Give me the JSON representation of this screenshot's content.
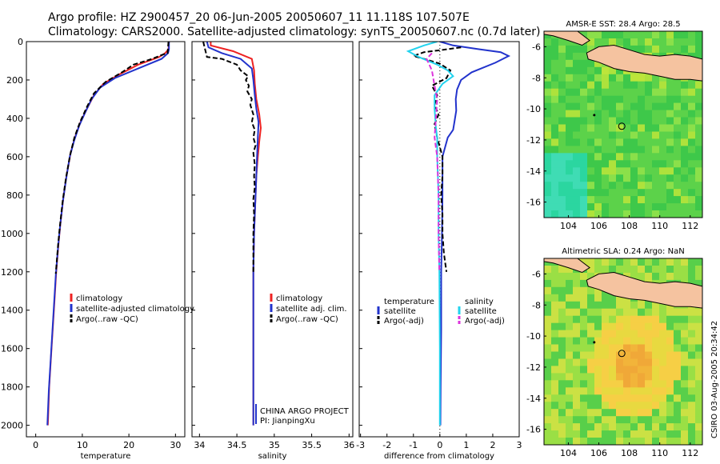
{
  "title": {
    "line1": "Argo profile: HZ 2900457_20 06-Jun-2005 20050607_11 11.118S 107.507E",
    "line2": "Climatology: CARS2000. Satellite-adjusted climatology: synTS_20050607.nc (0.7d later)"
  },
  "colors": {
    "climatology": "#ee2222",
    "satellite": "#2233cc",
    "argo": "#000000",
    "salinity_satellite": "#22d3ee",
    "salinity_argo": "#dd33dd",
    "land": "#f5c3a0"
  },
  "chart_data": [
    {
      "type": "line",
      "id": "temperature",
      "xlabel": "temperature",
      "ylabel": "",
      "xlim": [
        -2,
        32
      ],
      "ylim": [
        2060,
        0
      ],
      "xticks": [
        0,
        10,
        20,
        30
      ],
      "yticks": [
        0,
        200,
        400,
        600,
        800,
        1000,
        1200,
        1400,
        1600,
        1800,
        2000
      ],
      "legend": [
        "climatology",
        "satellite-adjusted climatology",
        "Argo(..raw -QC)"
      ],
      "series": [
        {
          "name": "climatology",
          "color_key": "climatology",
          "points": [
            [
              28.6,
              0
            ],
            [
              28.5,
              40
            ],
            [
              27.8,
              60
            ],
            [
              26.5,
              80
            ],
            [
              22,
              120
            ],
            [
              18,
              170
            ],
            [
              14.5,
              220
            ],
            [
              12.5,
              280
            ],
            [
              11,
              350
            ],
            [
              9.6,
              420
            ],
            [
              8.4,
              500
            ],
            [
              7.5,
              580
            ],
            [
              6.6,
              700
            ],
            [
              5.9,
              820
            ],
            [
              5.3,
              950
            ],
            [
              4.9,
              1050
            ],
            [
              4.4,
              1200
            ],
            [
              3.9,
              1400
            ],
            [
              3.4,
              1600
            ],
            [
              2.9,
              1800
            ],
            [
              2.6,
              2000
            ]
          ]
        },
        {
          "name": "satellite-adjusted climatology",
          "color_key": "satellite",
          "points": [
            [
              28.6,
              0
            ],
            [
              28.6,
              40
            ],
            [
              28.4,
              60
            ],
            [
              27,
              90
            ],
            [
              22,
              140
            ],
            [
              17,
              190
            ],
            [
              13.8,
              240
            ],
            [
              12,
              300
            ],
            [
              10.6,
              370
            ],
            [
              9.3,
              440
            ],
            [
              8.2,
              520
            ],
            [
              7.3,
              600
            ],
            [
              6.5,
              720
            ],
            [
              5.8,
              840
            ],
            [
              5.2,
              970
            ],
            [
              4.8,
              1070
            ],
            [
              4.3,
              1220
            ],
            [
              3.8,
              1420
            ],
            [
              3.3,
              1620
            ],
            [
              2.8,
              1820
            ],
            [
              2.5,
              2000
            ]
          ]
        },
        {
          "name": "Argo(..raw -QC)",
          "color_key": "argo",
          "points": [
            [
              28.5,
              0
            ],
            [
              28.3,
              60
            ],
            [
              27,
              70
            ],
            [
              25,
              90
            ],
            [
              21,
              120
            ],
            [
              18.5,
              160
            ],
            [
              15,
              210
            ],
            [
              12.5,
              270
            ],
            [
              11,
              340
            ],
            [
              9.5,
              420
            ],
            [
              8.3,
              500
            ],
            [
              7.4,
              590
            ],
            [
              6.5,
              710
            ],
            [
              5.8,
              830
            ],
            [
              5.2,
              960
            ],
            [
              4.8,
              1060
            ],
            [
              4.3,
              1210
            ]
          ]
        }
      ]
    },
    {
      "type": "line",
      "id": "salinity",
      "xlabel": "salinity",
      "xlim": [
        33.9,
        36.05
      ],
      "ylim": [
        2060,
        0
      ],
      "xticks": [
        34,
        34.5,
        35,
        35.5,
        36
      ],
      "legend": [
        "climatology",
        "satellite adj. clim.",
        "Argo(..raw -QC)"
      ],
      "annotation": [
        "CHINA ARGO PROJECT",
        "PI: JianpingXu"
      ],
      "series": [
        {
          "name": "climatology",
          "color_key": "climatology",
          "points": [
            [
              34.15,
              0
            ],
            [
              34.15,
              20
            ],
            [
              34.45,
              50
            ],
            [
              34.7,
              90
            ],
            [
              34.73,
              150
            ],
            [
              34.74,
              220
            ],
            [
              34.76,
              300
            ],
            [
              34.8,
              380
            ],
            [
              34.82,
              450
            ],
            [
              34.8,
              520
            ],
            [
              34.78,
              600
            ],
            [
              34.76,
              700
            ],
            [
              34.75,
              800
            ],
            [
              34.74,
              900
            ],
            [
              34.73,
              1000
            ],
            [
              34.72,
              1200
            ],
            [
              34.72,
              1400
            ],
            [
              34.72,
              1600
            ],
            [
              34.72,
              1800
            ],
            [
              34.72,
              2000
            ]
          ]
        },
        {
          "name": "satellite adj. clim.",
          "color_key": "satellite",
          "points": [
            [
              34.1,
              0
            ],
            [
              34.12,
              30
            ],
            [
              34.3,
              60
            ],
            [
              34.55,
              90
            ],
            [
              34.7,
              140
            ],
            [
              34.72,
              200
            ],
            [
              34.74,
              280
            ],
            [
              34.76,
              350
            ],
            [
              34.79,
              420
            ],
            [
              34.78,
              500
            ],
            [
              34.77,
              600
            ],
            [
              34.76,
              700
            ],
            [
              34.75,
              800
            ],
            [
              34.74,
              900
            ],
            [
              34.73,
              1000
            ],
            [
              34.72,
              1200
            ],
            [
              34.72,
              1400
            ],
            [
              34.72,
              1600
            ],
            [
              34.72,
              1800
            ],
            [
              34.72,
              2000
            ]
          ]
        },
        {
          "name": "Argo(..raw -QC)",
          "color_key": "argo",
          "points": [
            [
              34.05,
              0
            ],
            [
              34.1,
              80
            ],
            [
              34.3,
              90
            ],
            [
              34.5,
              120
            ],
            [
              34.55,
              150
            ],
            [
              34.65,
              180
            ],
            [
              34.62,
              200
            ],
            [
              34.66,
              230
            ],
            [
              34.64,
              260
            ],
            [
              34.7,
              300
            ],
            [
              34.68,
              330
            ],
            [
              34.72,
              380
            ],
            [
              34.7,
              420
            ],
            [
              34.74,
              460
            ],
            [
              34.72,
              500
            ],
            [
              34.75,
              540
            ],
            [
              34.72,
              580
            ],
            [
              34.74,
              640
            ],
            [
              34.73,
              700
            ],
            [
              34.74,
              760
            ],
            [
              34.72,
              820
            ],
            [
              34.73,
              900
            ],
            [
              34.72,
              1000
            ],
            [
              34.72,
              1100
            ],
            [
              34.72,
              1210
            ]
          ]
        }
      ]
    },
    {
      "type": "line",
      "id": "difference",
      "xlabel": "difference from climatology",
      "xlim": [
        -3.05,
        3
      ],
      "ylim": [
        2060,
        0
      ],
      "xticks": [
        -3,
        -2,
        -1,
        0,
        1,
        2,
        3
      ],
      "legend_left": [
        "temperature",
        "satellite",
        "Argo(-adj)"
      ],
      "legend_right": [
        "salinity",
        "satellite",
        "Argo(-adj)"
      ],
      "series": [
        {
          "name": "temperature satellite",
          "color_key": "satellite",
          "points": [
            [
              0,
              0
            ],
            [
              0.5,
              20
            ],
            [
              1.5,
              40
            ],
            [
              2.3,
              55
            ],
            [
              2.6,
              75
            ],
            [
              2.1,
              110
            ],
            [
              1.2,
              160
            ],
            [
              0.8,
              200
            ],
            [
              0.65,
              250
            ],
            [
              0.6,
              300
            ],
            [
              0.62,
              360
            ],
            [
              0.55,
              420
            ],
            [
              0.5,
              460
            ],
            [
              0.3,
              500
            ],
            [
              0.1,
              600
            ],
            [
              0.1,
              800
            ],
            [
              0.08,
              1000
            ],
            [
              0.05,
              1200
            ],
            [
              0.05,
              1500
            ],
            [
              0.03,
              1800
            ],
            [
              0.02,
              2000
            ]
          ]
        },
        {
          "name": "temperature Argo(-adj)",
          "color_key": "argo",
          "points": [
            [
              0.8,
              30
            ],
            [
              0,
              45
            ],
            [
              -0.6,
              55
            ],
            [
              -1.0,
              75
            ],
            [
              -0.6,
              90
            ],
            [
              0,
              115
            ],
            [
              0.4,
              150
            ],
            [
              0.25,
              190
            ],
            [
              -0.3,
              230
            ],
            [
              -0.1,
              280
            ],
            [
              -0.2,
              330
            ],
            [
              -0.05,
              380
            ],
            [
              -0.2,
              430
            ],
            [
              -0.1,
              500
            ],
            [
              0.1,
              600
            ],
            [
              0.1,
              700
            ],
            [
              0.05,
              800
            ],
            [
              0.1,
              900
            ],
            [
              0.1,
              1000
            ],
            [
              0.15,
              1100
            ],
            [
              0.2,
              1150
            ],
            [
              0.25,
              1200
            ]
          ]
        },
        {
          "name": "salinity satellite",
          "color_key": "salinity_satellite",
          "points": [
            [
              -0.1,
              0
            ],
            [
              -0.6,
              20
            ],
            [
              -1.2,
              50
            ],
            [
              -0.8,
              80
            ],
            [
              -0.1,
              120
            ],
            [
              0.3,
              150
            ],
            [
              0.5,
              180
            ],
            [
              0.1,
              220
            ],
            [
              -0.2,
              280
            ],
            [
              -0.2,
              350
            ],
            [
              -0.15,
              450
            ],
            [
              -0.1,
              500
            ],
            [
              -0.1,
              600
            ],
            [
              -0.05,
              800
            ],
            [
              -0.05,
              1000
            ],
            [
              -0.02,
              1200
            ],
            [
              -0.01,
              1400
            ],
            [
              0,
              1600
            ],
            [
              0,
              1800
            ],
            [
              0,
              2000
            ]
          ]
        },
        {
          "name": "salinity Argo(-adj)",
          "color_key": "salinity_argo",
          "points": [
            [
              -0.3,
              60
            ],
            [
              -0.5,
              90
            ],
            [
              -0.3,
              150
            ],
            [
              -0.2,
              230
            ],
            [
              -0.1,
              300
            ],
            [
              -0.15,
              400
            ],
            [
              -0.2,
              500
            ],
            [
              -0.1,
              600
            ],
            [
              -0.05,
              800
            ],
            [
              -0.05,
              1000
            ],
            [
              -0.02,
              1200
            ]
          ]
        }
      ]
    },
    {
      "type": "heatmap",
      "id": "sst_map",
      "title": "AMSR-E SST: 28.4 Argo: 28.5",
      "xlim": [
        102.4,
        112.8
      ],
      "ylim": [
        -17,
        -5
      ],
      "xticks": [
        104,
        106,
        108,
        110,
        112
      ],
      "yticks": [
        -6,
        -8,
        -10,
        -12,
        -14,
        -16
      ],
      "marker": [
        107.507,
        -11.118
      ]
    },
    {
      "type": "heatmap",
      "id": "sla_map",
      "title": "Altimetric SLA: 0.24 Argo: NaN",
      "xlim": [
        102.4,
        112.8
      ],
      "ylim": [
        -17,
        -5
      ],
      "xticks": [
        104,
        106,
        108,
        110,
        112
      ],
      "yticks": [
        -6,
        -8,
        -10,
        -12,
        -14,
        -16
      ],
      "marker": [
        107.507,
        -11.118
      ]
    }
  ],
  "footer": "CSIRO 03-Aug-2005 20:34:42"
}
